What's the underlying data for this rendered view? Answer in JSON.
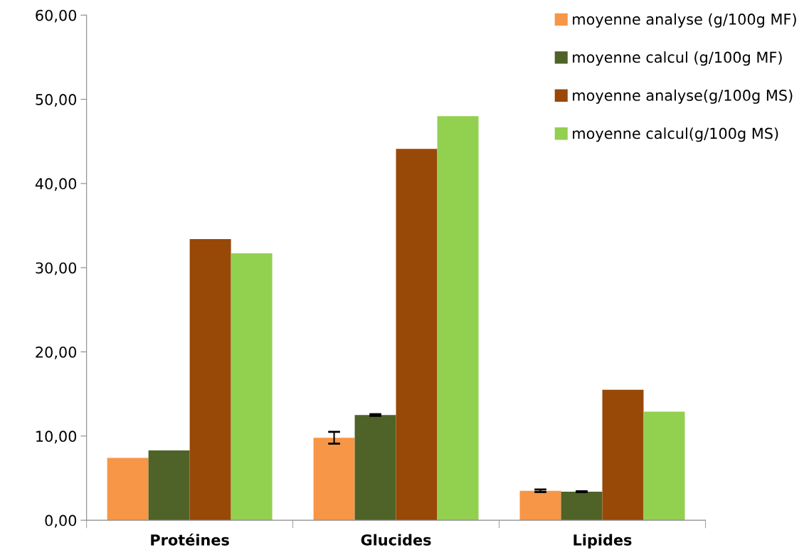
{
  "chart_data": {
    "type": "bar",
    "categories": [
      "Protéines",
      "Glucides",
      "Lipides"
    ],
    "series": [
      {
        "name": "moyenne analyse (g/100g MF)",
        "color": "#f79646",
        "values": [
          7.4,
          9.8,
          3.5
        ],
        "errors": [
          null,
          0.7,
          0.15
        ]
      },
      {
        "name": "moyenne calcul (g/100g MF)",
        "color": "#4f6228",
        "values": [
          8.3,
          12.5,
          3.4
        ],
        "errors": [
          null,
          0.1,
          0.05
        ]
      },
      {
        "name": "moyenne analyse(g/100g MS)",
        "color": "#984807",
        "values": [
          33.4,
          44.1,
          15.5
        ]
      },
      {
        "name": "moyenne calcul(g/100g MS)",
        "color": "#92d050",
        "values": [
          31.7,
          48.0,
          12.9
        ]
      }
    ],
    "ylim": [
      0,
      60
    ],
    "yticks": [
      {
        "value": 0,
        "label": "0,00"
      },
      {
        "value": 10,
        "label": "10,00"
      },
      {
        "value": 20,
        "label": "20,00"
      },
      {
        "value": 30,
        "label": "30,00"
      },
      {
        "value": 40,
        "label": "40,00"
      },
      {
        "value": 50,
        "label": "50,00"
      },
      {
        "value": 60,
        "label": "60,00"
      }
    ],
    "grid": false,
    "legend": "top right"
  }
}
